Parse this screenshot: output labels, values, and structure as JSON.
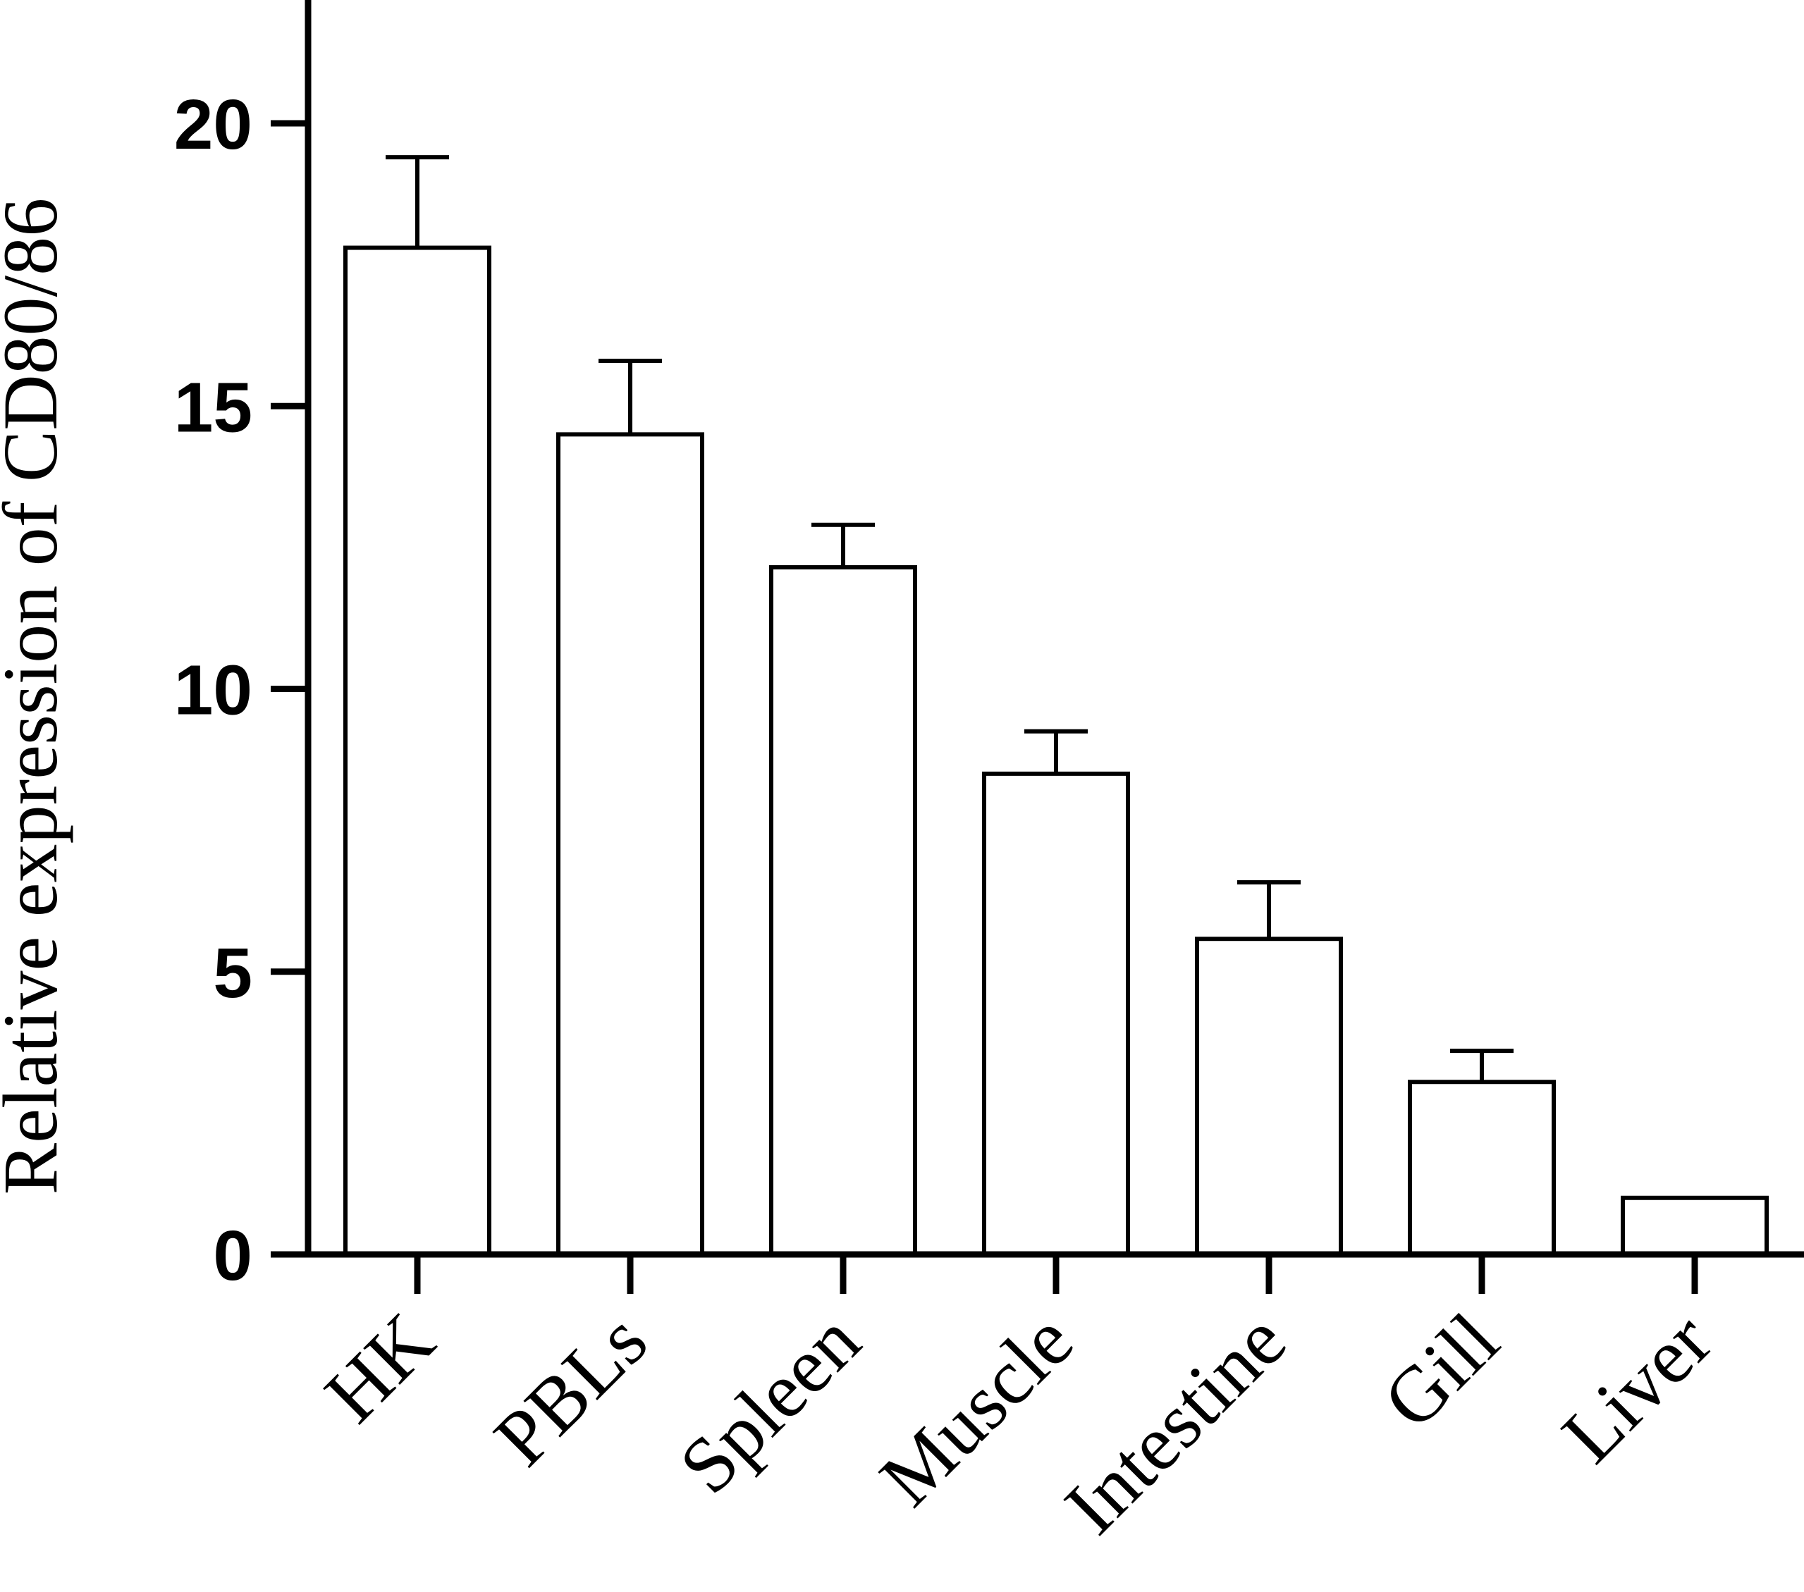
{
  "chart_data": {
    "type": "bar",
    "title": "",
    "xlabel": "",
    "ylabel": "Relative expression of CD80/86",
    "categories": [
      "HK",
      "PBLs",
      "Spleen",
      "Muscle",
      "Intestine",
      "Gill",
      "Liver"
    ],
    "values": [
      17.8,
      14.5,
      12.15,
      8.5,
      5.58,
      3.05,
      1.0
    ],
    "errors": [
      1.6,
      1.3,
      0.75,
      0.75,
      1.0,
      0.55,
      0.0
    ],
    "ylim": [
      0,
      22
    ],
    "yticks": [
      0,
      5,
      10,
      15,
      20
    ],
    "ytick_labels": [
      "0",
      "5",
      "10",
      "15",
      "20"
    ],
    "grid": false,
    "bar_fill": "#ffffff",
    "bar_edge": "#000000"
  }
}
